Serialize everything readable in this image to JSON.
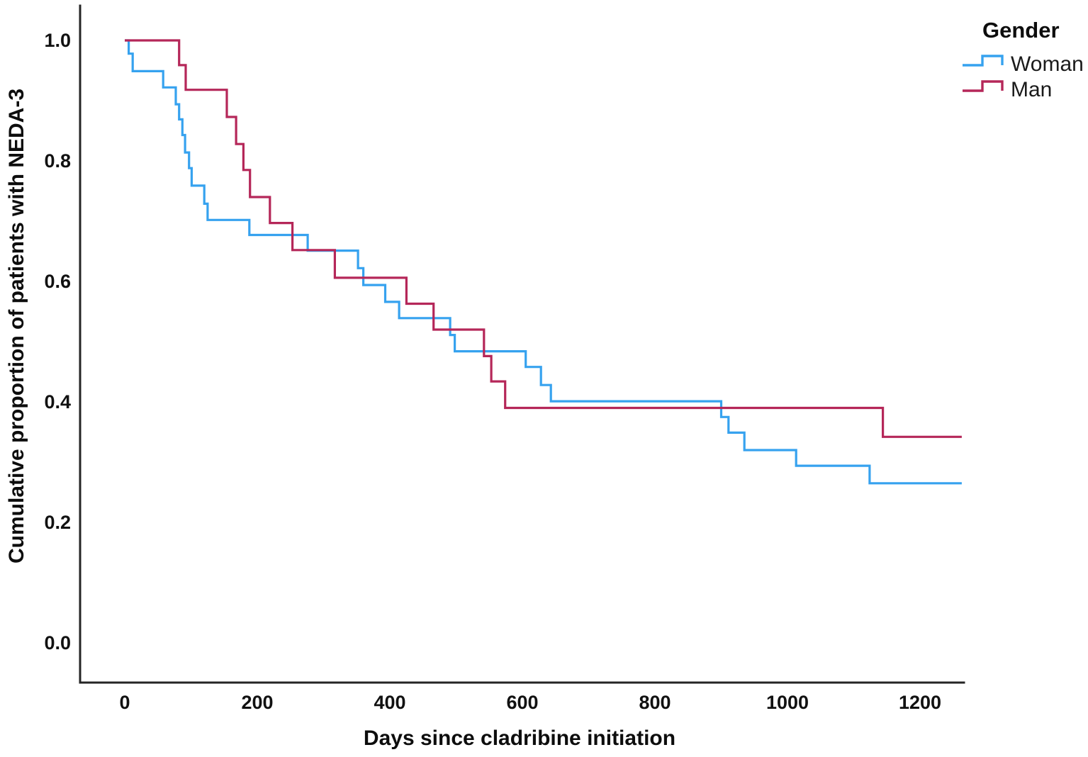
{
  "chart_data": {
    "type": "line",
    "subtype": "kaplan-meier-step",
    "title": "",
    "xlabel": "Days since cladribine initiation",
    "ylabel": "Cumulative proportion of patients with NEDA-3",
    "legend_title": "Gender",
    "legend_position": "top-right-outside",
    "grid": false,
    "xlim": [
      -67,
      1266
    ],
    "ylim": [
      -0.07,
      1.06
    ],
    "xticks": [
      0,
      200,
      400,
      600,
      800,
      1000,
      1200
    ],
    "xtick_labels": [
      "0",
      "200",
      "400",
      "600",
      "800",
      "1000",
      "1200"
    ],
    "yticks": [
      1.0,
      0.8,
      0.6,
      0.4,
      0.2,
      0.0
    ],
    "ytick_labels": [
      "1.0",
      "0.8",
      "0.6",
      "0.4",
      "0.2",
      "0.0"
    ],
    "series": [
      {
        "name": "Woman",
        "color": "#36a2ef",
        "points": [
          [
            0,
            1.0
          ],
          [
            6,
            0.978
          ],
          [
            12,
            0.949
          ],
          [
            58,
            0.922
          ],
          [
            77,
            0.894
          ],
          [
            82,
            0.869
          ],
          [
            87,
            0.843
          ],
          [
            91,
            0.814
          ],
          [
            97,
            0.788
          ],
          [
            101,
            0.759
          ],
          [
            120,
            0.729
          ],
          [
            125,
            0.702
          ],
          [
            188,
            0.677
          ],
          [
            276,
            0.651
          ],
          [
            352,
            0.622
          ],
          [
            360,
            0.594
          ],
          [
            393,
            0.566
          ],
          [
            414,
            0.539
          ],
          [
            491,
            0.511
          ],
          [
            498,
            0.484
          ],
          [
            605,
            0.458
          ],
          [
            628,
            0.428
          ],
          [
            643,
            0.401
          ],
          [
            900,
            0.375
          ],
          [
            911,
            0.349
          ],
          [
            935,
            0.32
          ],
          [
            1013,
            0.294
          ],
          [
            1124,
            0.265
          ],
          [
            1263,
            0.265
          ]
        ]
      },
      {
        "name": "Man",
        "color": "#b52759",
        "points": [
          [
            0,
            1.0
          ],
          [
            82,
            0.959
          ],
          [
            92,
            0.918
          ],
          [
            154,
            0.873
          ],
          [
            168,
            0.828
          ],
          [
            179,
            0.785
          ],
          [
            189,
            0.74
          ],
          [
            219,
            0.697
          ],
          [
            253,
            0.652
          ],
          [
            317,
            0.606
          ],
          [
            425,
            0.563
          ],
          [
            466,
            0.52
          ],
          [
            542,
            0.476
          ],
          [
            553,
            0.434
          ],
          [
            574,
            0.39
          ],
          [
            1144,
            0.342
          ],
          [
            1263,
            0.342
          ]
        ]
      }
    ]
  }
}
